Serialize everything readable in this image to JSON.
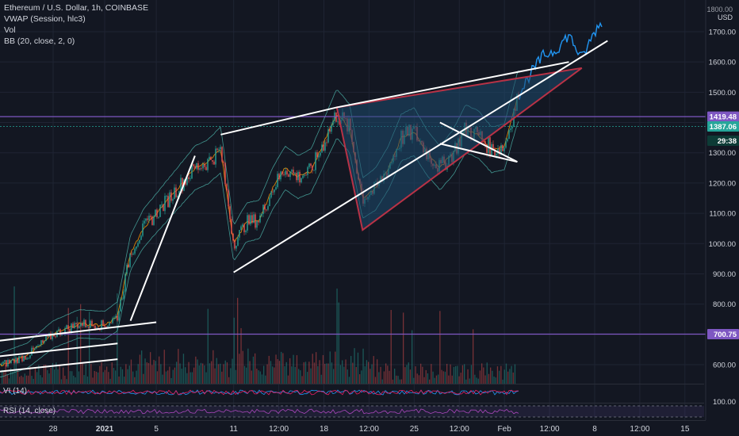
{
  "legend": {
    "title": "Ethereum / U.S. Dollar, 1h, COINBASE",
    "vwap": "VWAP (Session, hlc3)",
    "vol": "Vol",
    "bb": "BB (20, close, 2, 0)"
  },
  "panes": {
    "vi_label": "VI (14)",
    "rsi_label": "RSI (14, close)",
    "rsi_value": "100.00"
  },
  "axis": {
    "currency": "USD",
    "top_partial": "1800.00"
  },
  "colors": {
    "background": "#131722",
    "grid": "#1f2433",
    "candle_up": "#26a69a",
    "candle_down": "#ef5350",
    "hline": "#7e57c2",
    "trendline": "#ffffff",
    "triangle_fill": "#1e4a6e",
    "triangle_stroke": "#b83246",
    "price_line": "#2196f3",
    "bb": "#4db6ac",
    "vwap": "#ff9800"
  },
  "chart_data": {
    "type": "candlestick",
    "title": "Ethereum / U.S. Dollar, 1h, COINBASE",
    "y_ticks": [
      600,
      700,
      800,
      900,
      1000,
      1100,
      1200,
      1300,
      1400,
      1500,
      1600,
      1700
    ],
    "y_tick_labels": [
      "600.00",
      "700.00",
      "800.00",
      "900.00",
      "1000.00",
      "1100.00",
      "1200.00",
      "1300.00",
      "1400.00",
      "1500.00",
      "1600.00",
      "1700.00"
    ],
    "ylim": [
      540,
      1820
    ],
    "x_ticks": [
      {
        "label": "28",
        "date": "2020-12-28"
      },
      {
        "label": "2021",
        "date": "2021-01-01"
      },
      {
        "label": "5",
        "date": "2021-01-05"
      },
      {
        "label": "11",
        "date": "2021-01-11"
      },
      {
        "label": "12:00",
        "date": "2021-01-14T12:00"
      },
      {
        "label": "18",
        "date": "2021-01-18"
      },
      {
        "label": "12:00",
        "date": "2021-01-21T12:00"
      },
      {
        "label": "25",
        "date": "2021-01-25"
      },
      {
        "label": "12:00",
        "date": "2021-01-28T12:00"
      },
      {
        "label": "Feb",
        "date": "2021-02-01"
      },
      {
        "label": "12:00",
        "date": "2021-02-04T12:00"
      },
      {
        "label": "8",
        "date": "2021-02-08"
      },
      {
        "label": "12:00",
        "date": "2021-02-11T12:00"
      },
      {
        "label": "15",
        "date": "2021-02-15"
      }
    ],
    "price_path": [
      [
        "2020-12-22",
        580
      ],
      [
        "2020-12-24",
        600
      ],
      [
        "2020-12-26",
        630
      ],
      [
        "2020-12-28",
        700
      ],
      [
        "2020-12-30",
        735
      ],
      [
        "2021-01-01",
        730
      ],
      [
        "2021-01-02",
        760
      ],
      [
        "2021-01-03",
        970
      ],
      [
        "2021-01-04",
        1050
      ],
      [
        "2021-01-06",
        1150
      ],
      [
        "2021-01-08",
        1250
      ],
      [
        "2021-01-09",
        1270
      ],
      [
        "2021-01-10",
        1310
      ],
      [
        "2021-01-11",
        1000
      ],
      [
        "2021-01-12",
        1070
      ],
      [
        "2021-01-13",
        1080
      ],
      [
        "2021-01-14",
        1180
      ],
      [
        "2021-01-15",
        1250
      ],
      [
        "2021-01-16",
        1220
      ],
      [
        "2021-01-17",
        1240
      ],
      [
        "2021-01-19",
        1430
      ],
      [
        "2021-01-20",
        1380
      ],
      [
        "2021-01-21",
        1150
      ],
      [
        "2021-01-22",
        1180
      ],
      [
        "2021-01-23",
        1250
      ],
      [
        "2021-01-24",
        1350
      ],
      [
        "2021-01-25",
        1370
      ],
      [
        "2021-01-26",
        1300
      ],
      [
        "2021-01-27",
        1250
      ],
      [
        "2021-01-28",
        1300
      ],
      [
        "2021-01-29",
        1380
      ],
      [
        "2021-01-30",
        1360
      ],
      [
        "2021-01-31",
        1310
      ],
      [
        "2021-02-01",
        1320
      ],
      [
        "2021-02-02",
        1480
      ],
      [
        "2021-02-03",
        1560
      ],
      [
        "2021-02-04",
        1620
      ],
      [
        "2021-02-05",
        1640
      ],
      [
        "2021-02-06",
        1690
      ],
      [
        "2021-02-07",
        1610
      ],
      [
        "2021-02-08",
        1700
      ],
      [
        "2021-02-09",
        1760
      ]
    ],
    "horizontal_levels": [
      1419.48,
      700.75
    ],
    "price_labels": [
      {
        "value": 1419.48,
        "text": "1419.48",
        "style": "level"
      },
      {
        "value": 1387.06,
        "text": "1387.06",
        "style": "current"
      },
      {
        "value": 1340,
        "text": "29:38",
        "style": "countdown"
      },
      {
        "value": 700.75,
        "text": "700.75",
        "style": "level"
      }
    ],
    "trendlines": [
      [
        [
          "2021-01-10",
          1360
        ],
        [
          "2021-01-19",
          1450
        ],
        [
          "2021-02-06",
          1600
        ]
      ],
      [
        [
          "2021-01-11",
          905
        ],
        [
          "2021-02-09",
          1670
        ]
      ],
      [
        [
          "2021-01-03",
          745
        ],
        [
          "2021-01-08",
          1290
        ]
      ],
      [
        [
          "2020-12-20",
          660
        ],
        [
          "2021-01-05",
          740
        ]
      ],
      [
        [
          "2020-12-20",
          610
        ],
        [
          "2021-01-02",
          670
        ]
      ],
      [
        [
          "2020-12-20",
          560
        ],
        [
          "2021-01-02",
          618
        ]
      ],
      [
        [
          "2021-01-27",
          1400
        ],
        [
          "2021-02-02",
          1270
        ]
      ],
      [
        [
          "2021-01-27",
          1330
        ],
        [
          "2021-02-02",
          1270
        ]
      ]
    ],
    "triangle": [
      [
        "2021-01-19",
        1450
      ],
      [
        "2021-01-21",
        1045
      ],
      [
        "2021-02-07",
        1580
      ]
    ],
    "volume_pane": true,
    "vi_pane": true,
    "rsi_pane": true
  }
}
